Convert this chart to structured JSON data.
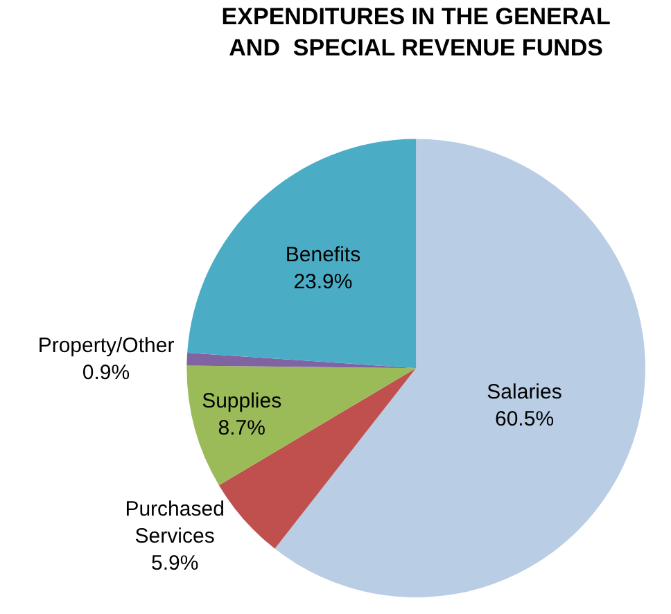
{
  "chart_data": {
    "type": "pie",
    "title": "EXPENDITURES IN THE GENERAL\nAND  SPECIAL REVENUE FUNDS",
    "categories": [
      "Salaries",
      "Purchased Services",
      "Supplies",
      "Property/Other",
      "Benefits"
    ],
    "values": [
      60.5,
      5.9,
      8.7,
      0.9,
      23.9
    ],
    "value_labels": [
      "60.5%",
      "5.9%",
      "8.7%",
      "0.9%",
      "23.9%"
    ],
    "colors": [
      "#b9cde5",
      "#c0504d",
      "#9bbb59",
      "#8064a2",
      "#4bacc6"
    ],
    "legend": false
  }
}
